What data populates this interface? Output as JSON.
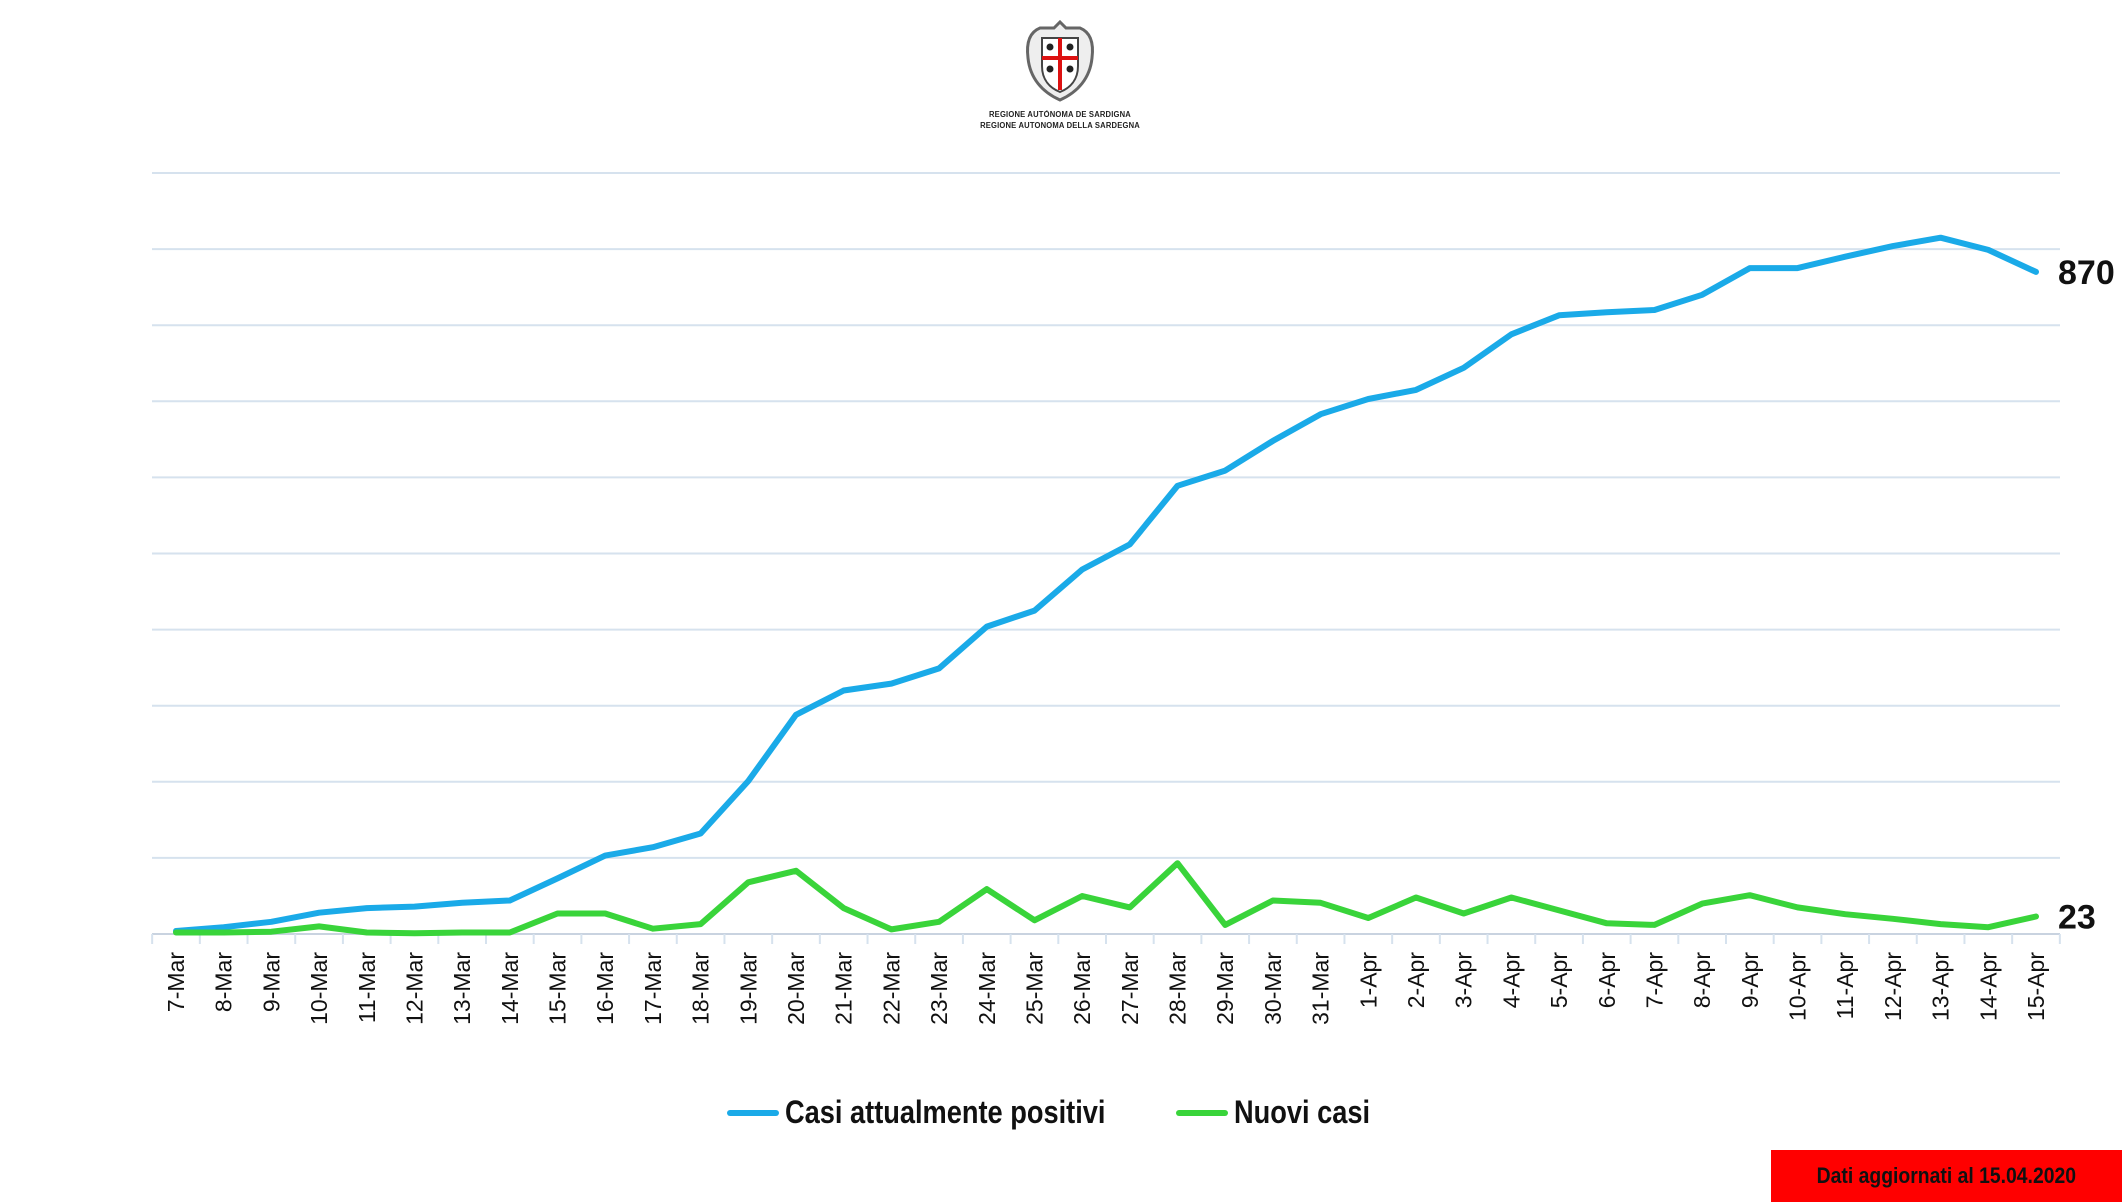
{
  "logo": {
    "line1": "REGIONE AUTÒNOMA DE SARDIGNA",
    "line2": "REGIONE AUTONOMA DELLA SARDEGNA"
  },
  "chart_data": {
    "type": "line",
    "title": "",
    "xlabel": "",
    "ylabel": "",
    "ylim": [
      0,
      1000
    ],
    "y_gridline_step": 100,
    "y_tick_labels_shown": false,
    "grid": true,
    "legend_position": "bottom",
    "categories": [
      "7-Mar",
      "8-Mar",
      "9-Mar",
      "10-Mar",
      "11-Mar",
      "12-Mar",
      "13-Mar",
      "14-Mar",
      "15-Mar",
      "16-Mar",
      "17-Mar",
      "18-Mar",
      "19-Mar",
      "20-Mar",
      "21-Mar",
      "22-Mar",
      "23-Mar",
      "24-Mar",
      "25-Mar",
      "26-Mar",
      "27-Mar",
      "28-Mar",
      "29-Mar",
      "30-Mar",
      "31-Mar",
      "1-Apr",
      "2-Apr",
      "3-Apr",
      "4-Apr",
      "5-Apr",
      "6-Apr",
      "7-Apr",
      "8-Apr",
      "9-Apr",
      "10-Apr",
      "11-Apr",
      "12-Apr",
      "13-Apr",
      "14-Apr",
      "15-Apr"
    ],
    "series": [
      {
        "name": "Casi attualmente positivi",
        "color": "#1aaae8",
        "end_label": "870",
        "values": [
          4,
          9,
          16,
          28,
          34,
          36,
          41,
          44,
          73,
          103,
          114,
          132,
          201,
          288,
          320,
          329,
          349,
          404,
          425,
          479,
          512,
          589,
          609,
          648,
          683,
          703,
          715,
          744,
          788,
          813,
          817,
          820,
          840,
          875,
          875,
          890,
          904,
          915,
          899,
          870
        ]
      },
      {
        "name": "Nuovi casi",
        "color": "#39d43a",
        "end_label": "23",
        "values": [
          2,
          2,
          3,
          10,
          2,
          1,
          2,
          2,
          27,
          27,
          7,
          13,
          68,
          83,
          34,
          6,
          16,
          59,
          18,
          50,
          35,
          93,
          12,
          44,
          41,
          21,
          48,
          27,
          48,
          31,
          14,
          12,
          40,
          51,
          35,
          26,
          20,
          13,
          9,
          23
        ]
      }
    ]
  },
  "footer": {
    "update_label": "Dati aggiornati al 15.04.2020",
    "update_bg": "#ff0000"
  }
}
